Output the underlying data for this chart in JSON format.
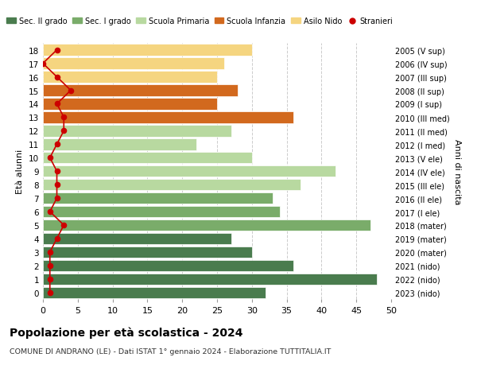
{
  "ages": [
    18,
    17,
    16,
    15,
    14,
    13,
    12,
    11,
    10,
    9,
    8,
    7,
    6,
    5,
    4,
    3,
    2,
    1,
    0
  ],
  "right_labels": [
    "2005 (V sup)",
    "2006 (IV sup)",
    "2007 (III sup)",
    "2008 (II sup)",
    "2009 (I sup)",
    "2010 (III med)",
    "2011 (II med)",
    "2012 (I med)",
    "2013 (V ele)",
    "2014 (IV ele)",
    "2015 (III ele)",
    "2016 (II ele)",
    "2017 (I ele)",
    "2018 (mater)",
    "2019 (mater)",
    "2020 (mater)",
    "2021 (nido)",
    "2022 (nido)",
    "2023 (nido)"
  ],
  "bar_values": [
    32,
    48,
    36,
    30,
    27,
    47,
    34,
    33,
    37,
    42,
    30,
    22,
    27,
    36,
    25,
    28,
    25,
    26,
    30
  ],
  "bar_colors": [
    "#4a7c4e",
    "#4a7c4e",
    "#4a7c4e",
    "#4a7c4e",
    "#4a7c4e",
    "#7aac6a",
    "#7aac6a",
    "#7aac6a",
    "#b8d9a0",
    "#b8d9a0",
    "#b8d9a0",
    "#b8d9a0",
    "#b8d9a0",
    "#d2691e",
    "#d2691e",
    "#d2691e",
    "#f5d580",
    "#f5d580",
    "#f5d580"
  ],
  "stranieri_values": [
    1,
    1,
    1,
    1,
    2,
    3,
    1,
    2,
    2,
    2,
    1,
    2,
    3,
    3,
    2,
    4,
    2,
    0,
    2
  ],
  "stranieri_color": "#cc0000",
  "ylabel_left": "Età alunni",
  "ylabel_right": "Anni di nascita",
  "title": "Popolazione per età scolastica - 2024",
  "subtitle": "COMUNE DI ANDRANO (LE) - Dati ISTAT 1° gennaio 2024 - Elaborazione TUTTITALIA.IT",
  "xlim": [
    0,
    50
  ],
  "xticks": [
    0,
    5,
    10,
    15,
    20,
    25,
    30,
    35,
    40,
    45,
    50
  ],
  "legend_items": [
    {
      "label": "Sec. II grado",
      "color": "#4a7c4e"
    },
    {
      "label": "Sec. I grado",
      "color": "#7aac6a"
    },
    {
      "label": "Scuola Primaria",
      "color": "#b8d9a0"
    },
    {
      "label": "Scuola Infanzia",
      "color": "#d2691e"
    },
    {
      "label": "Asilo Nido",
      "color": "#f5d580"
    },
    {
      "label": "Stranieri",
      "color": "#cc0000"
    }
  ],
  "bg_color": "#ffffff",
  "grid_color": "#cccccc"
}
